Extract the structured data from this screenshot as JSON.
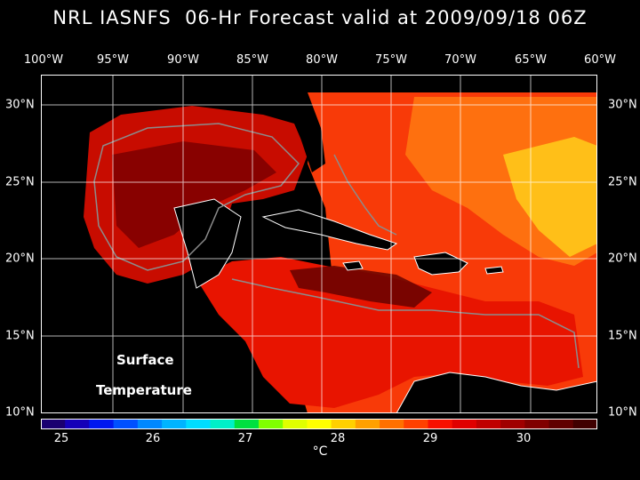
{
  "title": "NRL IASNFS  06-Hr Forecast valid at 2009/09/18 06Z",
  "longitude_labels": [
    "100°W",
    "95°W",
    "90°W",
    "85°W",
    "80°W",
    "75°W",
    "70°W",
    "65°W",
    "60°W"
  ],
  "latitude_labels": [
    "30°N",
    "25°N",
    "20°N",
    "15°N",
    "10°N"
  ],
  "field_label_line1": "Surface",
  "field_label_line2": "Temperature",
  "colorbar": {
    "tick_labels": [
      "25",
      "26",
      "27",
      "28",
      "29",
      "30"
    ],
    "unit": "°C",
    "colors": [
      "#1a0070",
      "#1400b8",
      "#0018f0",
      "#0050ff",
      "#0088ff",
      "#00b4ff",
      "#00dcff",
      "#00f0c8",
      "#00e040",
      "#80ff00",
      "#e0ff00",
      "#ffff00",
      "#ffd000",
      "#ffa000",
      "#ff7000",
      "#ff4000",
      "#f81000",
      "#e00000",
      "#c00000",
      "#a00000",
      "#800000",
      "#600000",
      "#400000"
    ]
  },
  "colors": {
    "background": "#000000",
    "land": "#000000",
    "contour": "#8c8c8c",
    "grid": "#ffffff"
  }
}
